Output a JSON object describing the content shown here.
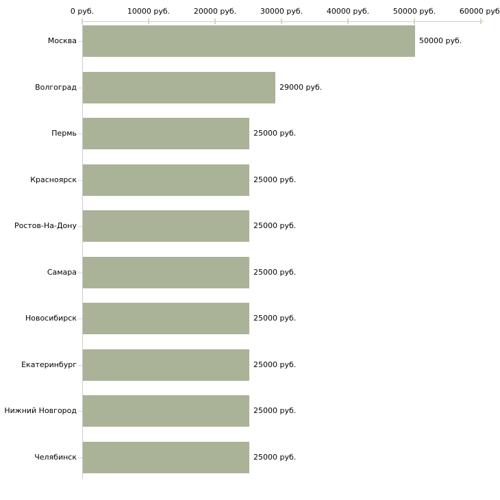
{
  "chart_data": {
    "type": "bar",
    "orientation": "horizontal",
    "title": "",
    "xlabel": "",
    "ylabel": "",
    "categories": [
      "Москва",
      "Волгоград",
      "Пермь",
      "Красноярск",
      "Ростов-На-Дону",
      "Самара",
      "Новосибирск",
      "Екатеринбург",
      "Нижний Новгород",
      "Челябинск"
    ],
    "values": [
      50000,
      29000,
      25000,
      25000,
      25000,
      25000,
      25000,
      25000,
      25000,
      25000
    ],
    "value_labels": [
      "50000 руб.",
      "29000 руб.",
      "25000 руб.",
      "25000 руб.",
      "25000 руб.",
      "25000 руб.",
      "25000 руб.",
      "25000 руб.",
      "25000 руб.",
      "25000 руб."
    ],
    "x_ticks": [
      0,
      10000,
      20000,
      30000,
      40000,
      50000,
      60000
    ],
    "x_tick_labels": [
      "0 руб.",
      "10000 руб.",
      "20000 руб.",
      "30000 руб.",
      "40000 руб.",
      "50000 руб.",
      "60000 руб."
    ],
    "xlim": [
      0,
      60000
    ],
    "axis_position": "top",
    "grid": false,
    "legend": false,
    "colors": {
      "bar": "#aab398",
      "axis_line": "#cccccc",
      "tick_mark": "#d6d6bc",
      "text": "#000000",
      "background": "#ffffff"
    }
  }
}
